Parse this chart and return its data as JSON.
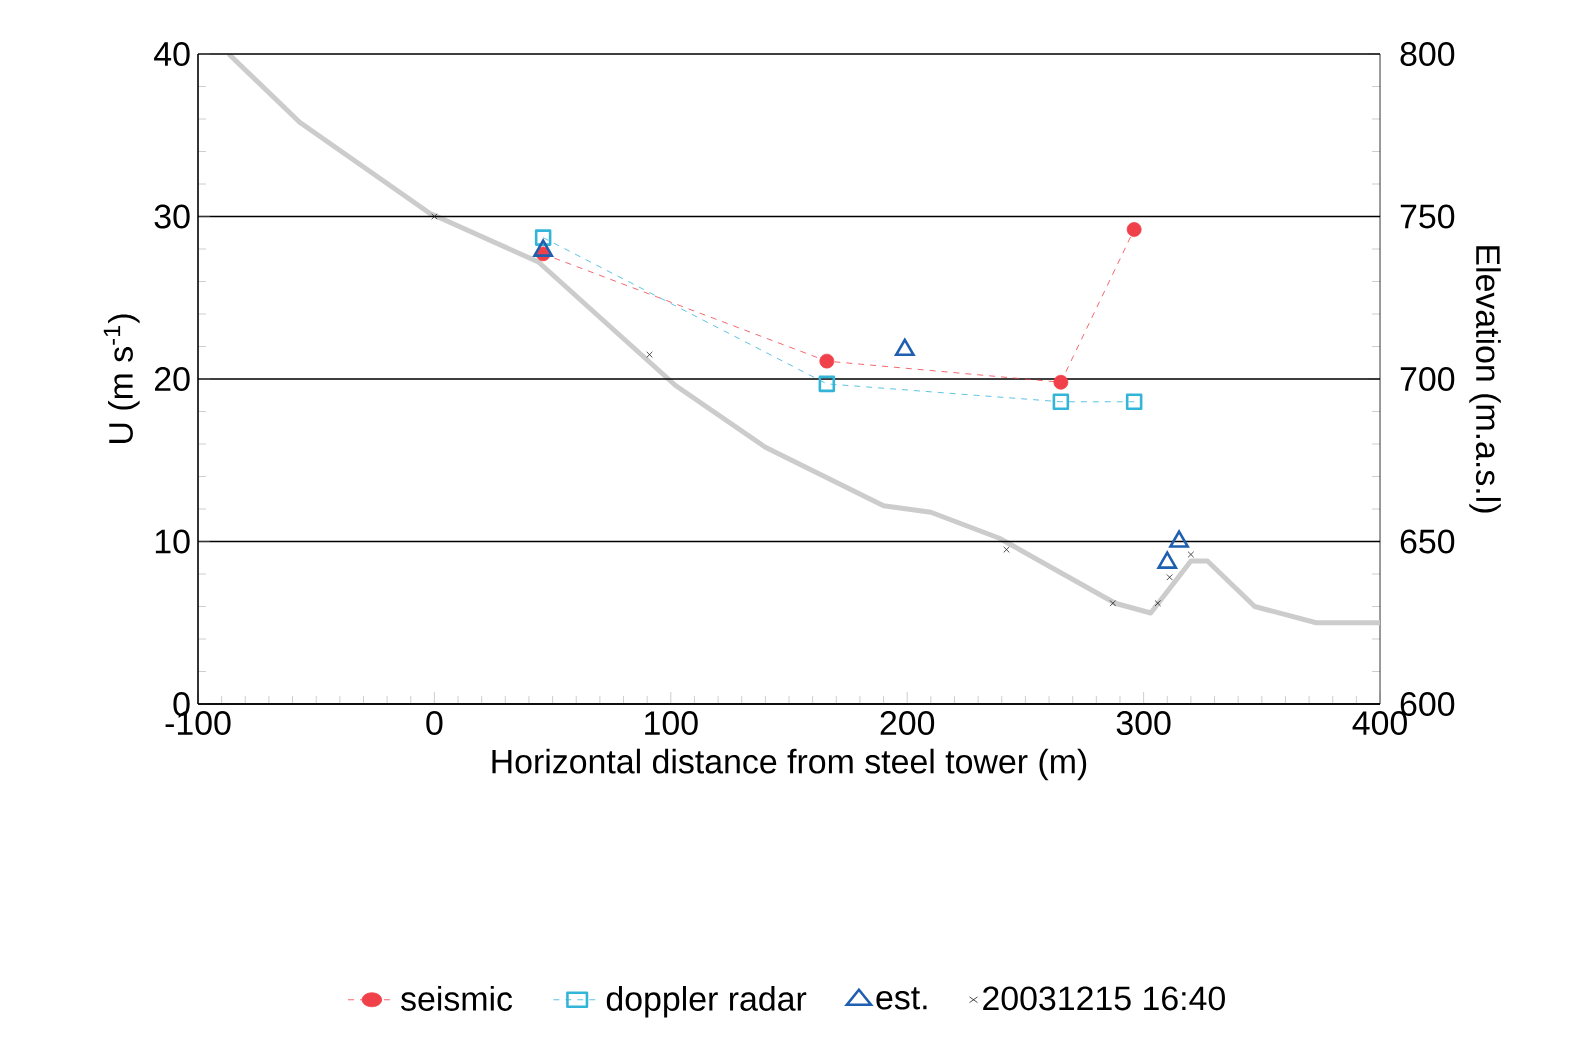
{
  "chart_data": {
    "type": "line",
    "xlabel": "Horizontal distance  from steel tower  (m)",
    "ylabel": "U (m s$^{-1}$)",
    "y2label": "Elevation (m.a.s.l)",
    "xlim": [
      -100,
      400
    ],
    "xticks": [
      -100,
      0,
      100,
      200,
      300,
      400
    ],
    "ylim": [
      0,
      40
    ],
    "yticks": [
      0,
      10,
      20,
      30,
      40
    ],
    "y2lim": [
      600,
      800
    ],
    "y2ticks": [
      600,
      650,
      700,
      750,
      800
    ],
    "grid": "y",
    "legend": "bottom",
    "series": [
      {
        "axis": "y2",
        "color": "#cccccc",
        "line_style": "solid",
        "marker": "none",
        "x": [
          -87,
          -57,
          -2,
          44,
          102,
          140,
          190,
          210,
          239,
          288,
          303,
          320,
          327,
          347,
          373,
          400
        ],
        "values": [
          800,
          779,
          751,
          736,
          698,
          679,
          661,
          659,
          651,
          631,
          628,
          644,
          644,
          630,
          625,
          625
        ]
      },
      {
        "name": "seismic",
        "color": "#f0404a",
        "line_style": "dashed",
        "marker": "circle",
        "x": [
          46,
          166,
          265,
          296
        ],
        "values": [
          27.7,
          21.1,
          19.8,
          29.2
        ]
      },
      {
        "name": "doppler radar",
        "color": "#33b5d9",
        "line_style": "dashed",
        "marker": "square",
        "x": [
          46,
          166,
          265,
          296
        ],
        "values": [
          28.7,
          19.7,
          18.6,
          18.6
        ]
      },
      {
        "type": "scatter",
        "name": "est.",
        "color": "#1f5fb0",
        "marker": "triangle",
        "x": [
          46,
          199,
          310,
          315
        ],
        "values": [
          27.9,
          21.8,
          8.7,
          10.0
        ]
      },
      {
        "type": "scatter",
        "name": "20031215 16:40",
        "color": "#222222",
        "marker": "cross",
        "x": [
          0,
          91,
          242,
          287,
          306,
          311,
          320
        ],
        "values": [
          30.0,
          21.5,
          9.5,
          6.2,
          6.2,
          7.8,
          9.2
        ]
      }
    ]
  }
}
